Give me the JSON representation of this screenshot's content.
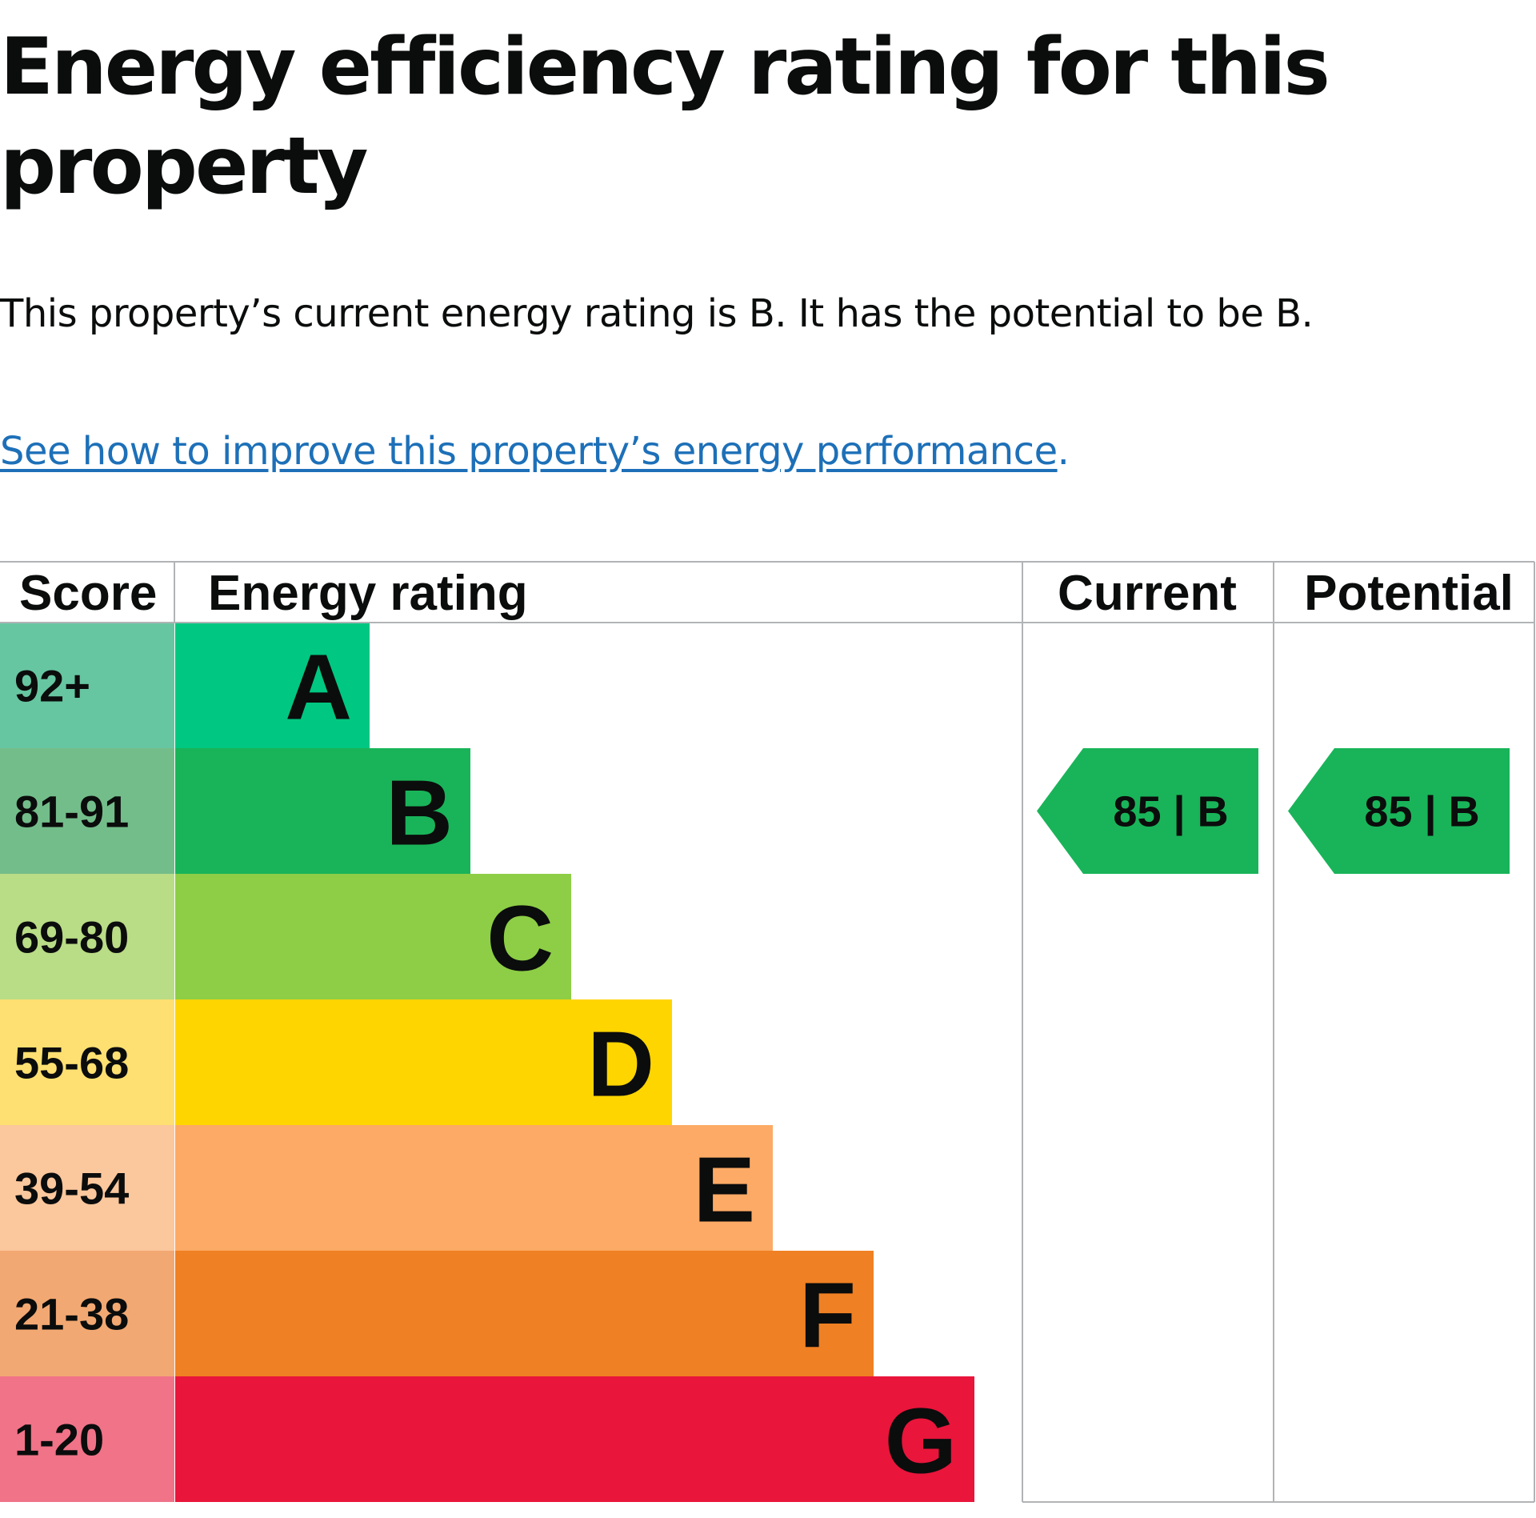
{
  "page": {
    "title": "Energy efficiency rating for this property",
    "summary": "This property’s current energy rating is B. It has the potential to be B.",
    "improve_link": "See how to improve this property’s energy performance",
    "improve_link_suffix": "."
  },
  "chart_data": {
    "type": "table",
    "headers": {
      "score": "Score",
      "rating": "Energy rating",
      "current": "Current",
      "potential": "Potential"
    },
    "bands": [
      {
        "band": "A",
        "score": "92+",
        "color": "#00c781",
        "light": "#66c6a1"
      },
      {
        "band": "B",
        "score": "81-91",
        "color": "#19b459",
        "light": "#73bd8a"
      },
      {
        "band": "C",
        "score": "69-80",
        "color": "#8dce46",
        "light": "#b9dc86"
      },
      {
        "band": "D",
        "score": "55-68",
        "color": "#ffd500",
        "light": "#fde071"
      },
      {
        "band": "E",
        "score": "39-54",
        "color": "#fcaa65",
        "light": "#fbc79c"
      },
      {
        "band": "F",
        "score": "21-38",
        "color": "#ef8023",
        "light": "#f2a872"
      },
      {
        "band": "G",
        "score": "1-20",
        "color": "#e9153b",
        "light": "#f07388"
      }
    ],
    "current": {
      "score": 85,
      "band": "B",
      "label": "85 | B"
    },
    "potential": {
      "score": 85,
      "band": "B",
      "label": "85 | B"
    }
  }
}
